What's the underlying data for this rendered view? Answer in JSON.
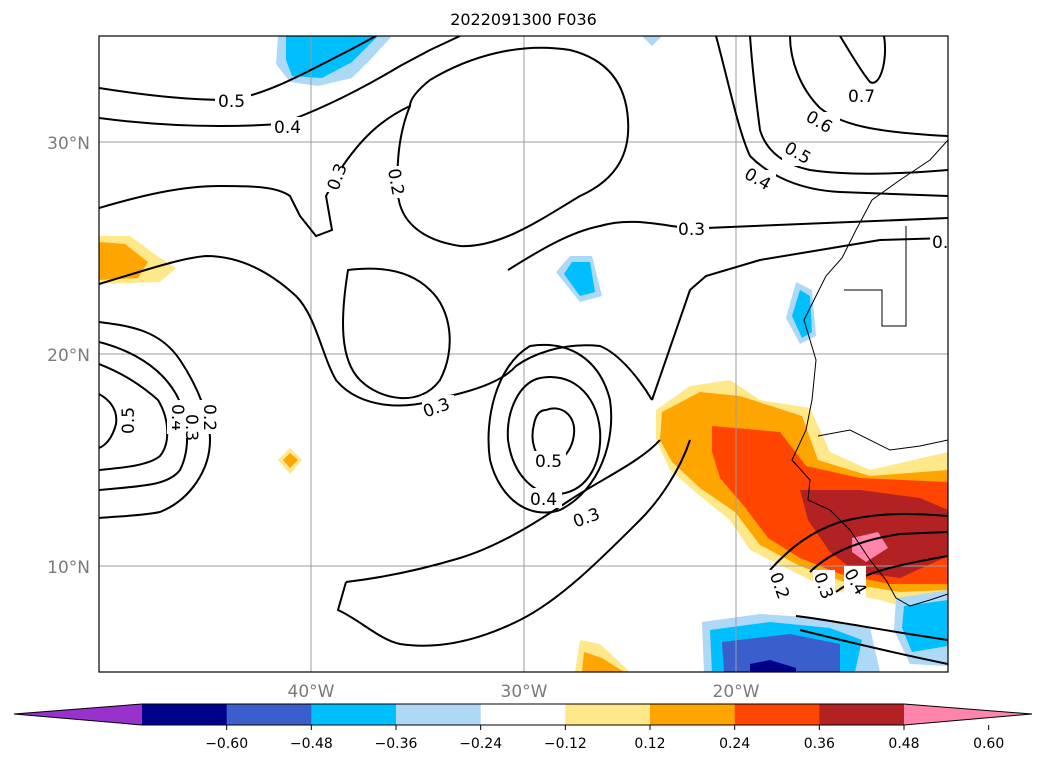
{
  "title": "2022091300 F036",
  "map": {
    "lat_labels": [
      "30°N",
      "20°N",
      "10°N"
    ],
    "lon_labels": [
      "40°W",
      "30°W",
      "20°W"
    ],
    "contour_labels": [
      "0.5",
      "0.4",
      "0.3",
      "0.2",
      "0.3",
      "0.2",
      "0.3",
      "0.5",
      "0.4",
      "0.3",
      "0.5",
      "0.4",
      "0.3",
      "0.2",
      "0.7",
      "0.6",
      "0.5",
      "0.4",
      "0.",
      "0.2",
      "0.3",
      "0.4"
    ]
  },
  "colorbar": {
    "ticks": [
      "−0.60",
      "−0.48",
      "−0.36",
      "−0.24",
      "−0.12",
      "0.12",
      "0.24",
      "0.36",
      "0.48",
      "0.60"
    ],
    "colors": [
      "#9932cc",
      "#00008b",
      "#3a5fcd",
      "#00bfff",
      "#add8f6",
      "#ffffff",
      "#ffe88a",
      "#ffa500",
      "#ff4500",
      "#b22222",
      "#ff85ad"
    ]
  }
}
